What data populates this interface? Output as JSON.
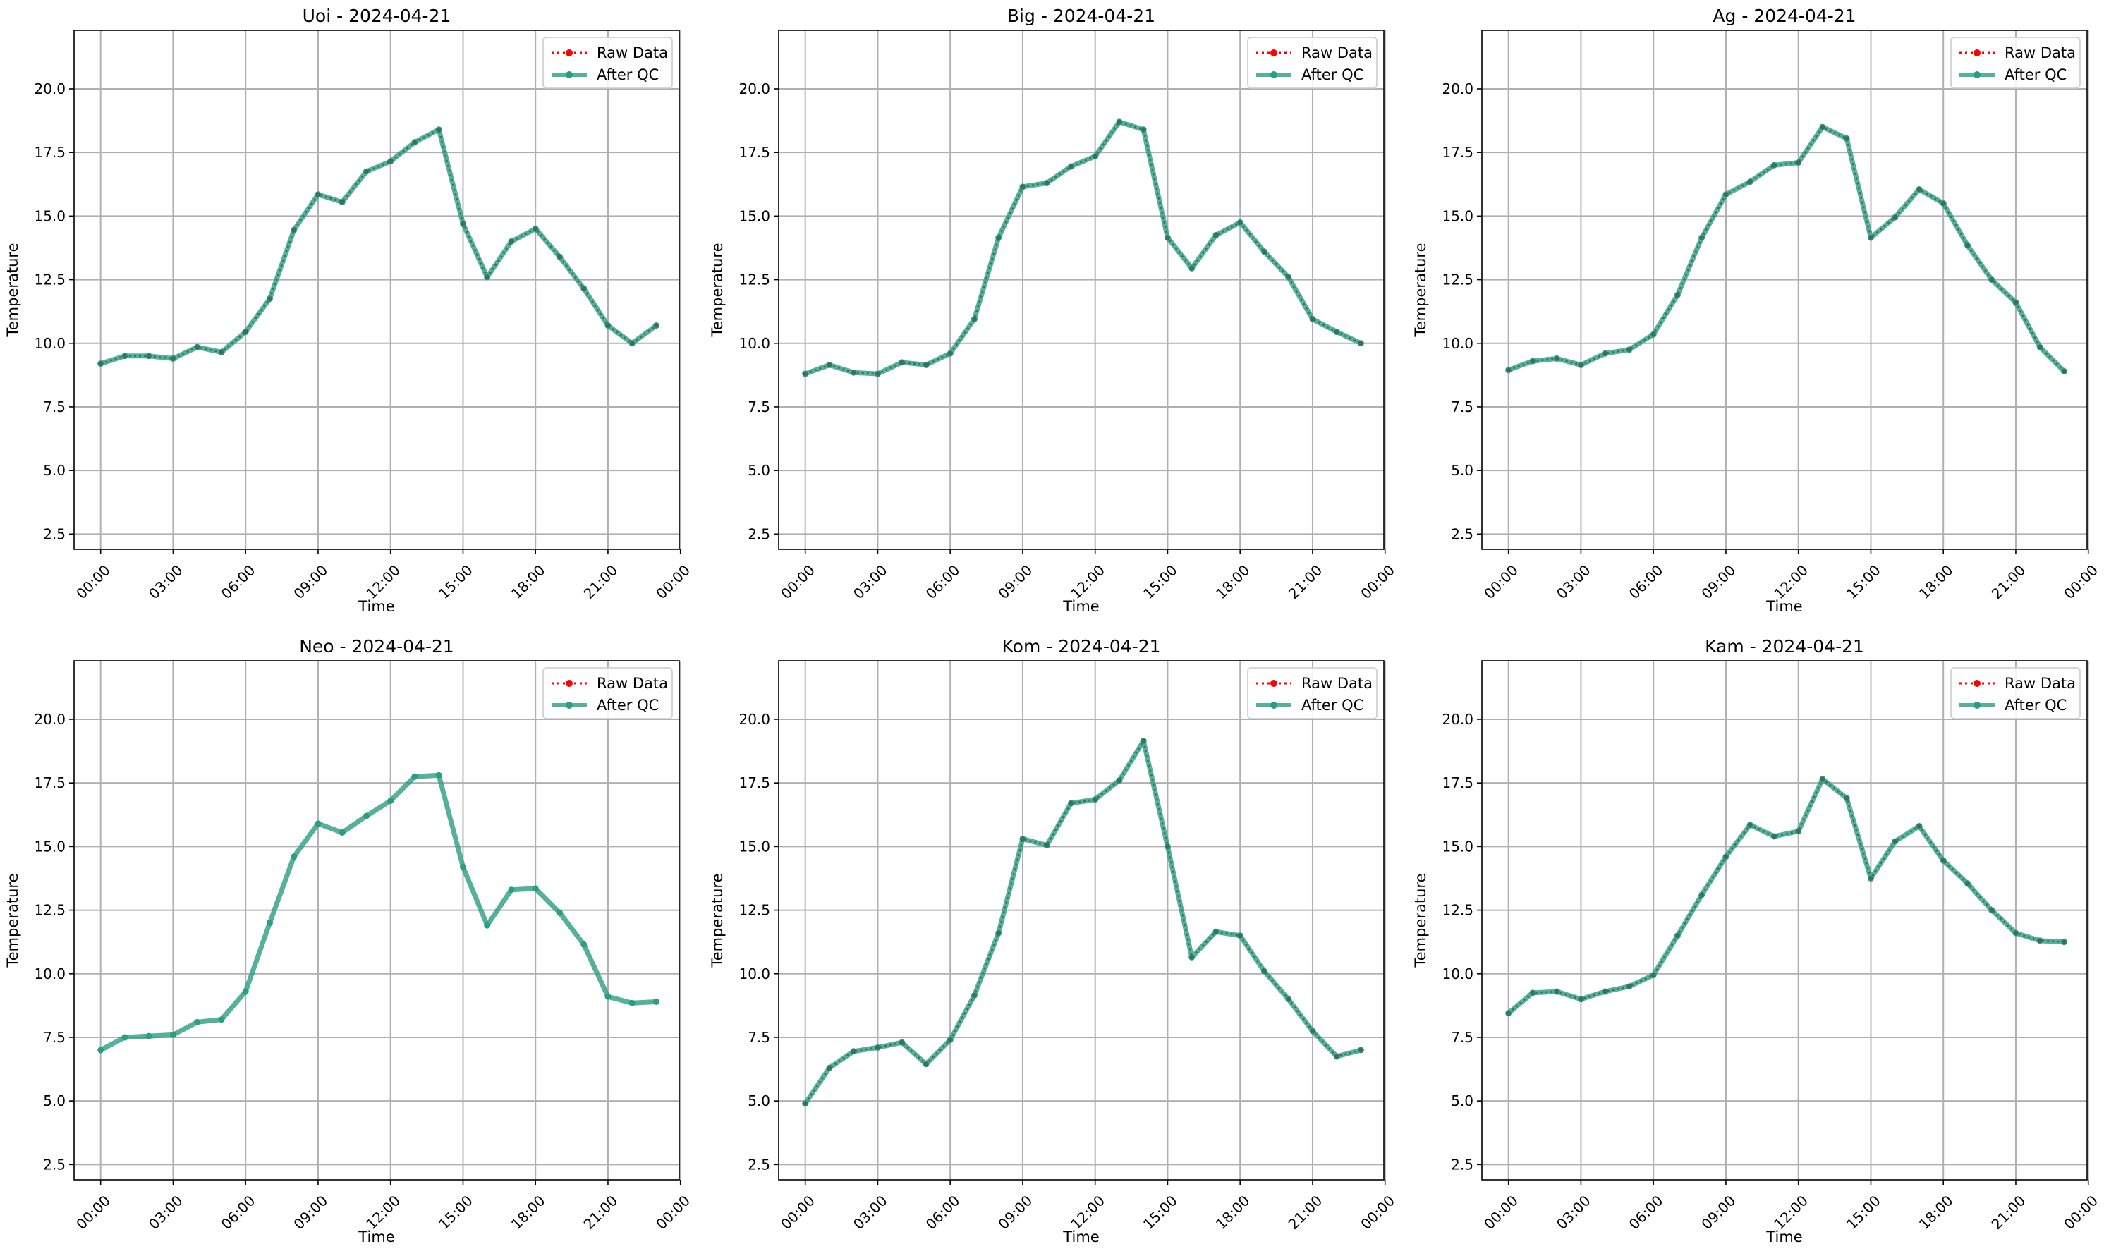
{
  "chart_data": [
    {
      "type": "line",
      "title": "Uoi - 2024-04-21",
      "xlabel": "Time",
      "ylabel": "Temperature",
      "ylim": [
        1.9,
        22.3
      ],
      "yticks": [
        "2.5",
        "5.0",
        "7.5",
        "10.0",
        "12.5",
        "15.0",
        "17.5",
        "20.0"
      ],
      "xticks": [
        "00:00",
        "03:00",
        "06:00",
        "09:00",
        "12:00",
        "15:00",
        "18:00",
        "21:00",
        "00:00"
      ],
      "x_hours": [
        0,
        1,
        2,
        3,
        4,
        5,
        6,
        7,
        8,
        9,
        10,
        11,
        12,
        13,
        14,
        15,
        16,
        17,
        18,
        19,
        20,
        21,
        22,
        23
      ],
      "grid": true,
      "legend_position": "top-right",
      "series": [
        {
          "name": "Raw Data",
          "color": "#ff0000",
          "style": "dotted",
          "values": [
            9.2,
            9.5,
            9.5,
            9.4,
            9.85,
            9.65,
            10.45,
            11.75,
            14.45,
            15.85,
            15.55,
            16.75,
            17.15,
            17.9,
            18.4,
            14.7,
            12.6,
            14.0,
            14.5,
            13.4,
            12.15,
            10.7,
            10.0,
            10.7
          ]
        },
        {
          "name": "After QC",
          "color": "#2a9d82",
          "style": "solid",
          "values": [
            9.2,
            9.5,
            9.5,
            9.4,
            9.85,
            9.65,
            10.45,
            11.75,
            14.45,
            15.85,
            15.55,
            16.75,
            17.15,
            17.9,
            18.4,
            14.7,
            12.6,
            14.0,
            14.5,
            13.4,
            12.15,
            10.7,
            10.0,
            10.7
          ]
        }
      ]
    },
    {
      "type": "line",
      "title": "Big - 2024-04-21",
      "xlabel": "Time",
      "ylabel": "Temperature",
      "ylim": [
        1.9,
        22.3
      ],
      "yticks": [
        "2.5",
        "5.0",
        "7.5",
        "10.0",
        "12.5",
        "15.0",
        "17.5",
        "20.0"
      ],
      "xticks": [
        "00:00",
        "03:00",
        "06:00",
        "09:00",
        "12:00",
        "15:00",
        "18:00",
        "21:00",
        "00:00"
      ],
      "x_hours": [
        0,
        1,
        2,
        3,
        4,
        5,
        6,
        7,
        8,
        9,
        10,
        11,
        12,
        13,
        14,
        15,
        16,
        17,
        18,
        19,
        20,
        21,
        22,
        23
      ],
      "grid": true,
      "legend_position": "top-right",
      "series": [
        {
          "name": "Raw Data",
          "color": "#ff0000",
          "style": "dotted",
          "values": [
            8.8,
            9.15,
            8.85,
            8.8,
            9.25,
            9.15,
            9.6,
            10.95,
            14.15,
            16.15,
            16.3,
            16.95,
            17.35,
            18.7,
            18.4,
            14.15,
            12.95,
            14.25,
            14.75,
            13.6,
            12.6,
            10.95,
            10.45,
            10.0
          ]
        },
        {
          "name": "After QC",
          "color": "#2a9d82",
          "style": "solid",
          "values": [
            8.8,
            9.15,
            8.85,
            8.8,
            9.25,
            9.15,
            9.6,
            10.95,
            14.15,
            16.15,
            16.3,
            16.95,
            17.35,
            18.7,
            18.4,
            14.15,
            12.95,
            14.25,
            14.75,
            13.6,
            12.6,
            10.95,
            10.45,
            10.0
          ]
        }
      ]
    },
    {
      "type": "line",
      "title": "Ag - 2024-04-21",
      "xlabel": "Time",
      "ylabel": "Temperature",
      "ylim": [
        1.9,
        22.3
      ],
      "yticks": [
        "2.5",
        "5.0",
        "7.5",
        "10.0",
        "12.5",
        "15.0",
        "17.5",
        "20.0"
      ],
      "xticks": [
        "00:00",
        "03:00",
        "06:00",
        "09:00",
        "12:00",
        "15:00",
        "18:00",
        "21:00",
        "00:00"
      ],
      "x_hours": [
        0,
        1,
        2,
        3,
        4,
        5,
        6,
        7,
        8,
        9,
        10,
        11,
        12,
        13,
        14,
        15,
        16,
        17,
        18,
        19,
        20,
        21,
        22,
        23
      ],
      "grid": true,
      "legend_position": "top-right",
      "series": [
        {
          "name": "Raw Data",
          "color": "#ff0000",
          "style": "dotted",
          "values": [
            8.95,
            9.3,
            9.4,
            9.15,
            9.6,
            9.75,
            10.35,
            11.9,
            14.15,
            15.85,
            16.35,
            17.0,
            17.1,
            18.5,
            18.05,
            14.15,
            14.95,
            16.05,
            15.5,
            13.85,
            12.5,
            11.6,
            9.85,
            8.9
          ]
        },
        {
          "name": "After QC",
          "color": "#2a9d82",
          "style": "solid",
          "values": [
            8.95,
            9.3,
            9.4,
            9.15,
            9.6,
            9.75,
            10.35,
            11.9,
            14.15,
            15.85,
            16.35,
            17.0,
            17.1,
            18.5,
            18.05,
            14.15,
            14.95,
            16.05,
            15.5,
            13.85,
            12.5,
            11.6,
            9.85,
            8.9
          ]
        }
      ]
    },
    {
      "type": "line",
      "title": "Neo - 2024-04-21",
      "xlabel": "Time",
      "ylabel": "Temperature",
      "ylim": [
        1.9,
        22.3
      ],
      "yticks": [
        "2.5",
        "5.0",
        "7.5",
        "10.0",
        "12.5",
        "15.0",
        "17.5",
        "20.0"
      ],
      "xticks": [
        "00:00",
        "03:00",
        "06:00",
        "09:00",
        "12:00",
        "15:00",
        "18:00",
        "21:00",
        "00:00"
      ],
      "x_hours": [
        0,
        1,
        2,
        3,
        4,
        5,
        6,
        7,
        8,
        9,
        10,
        11,
        12,
        13,
        14,
        15,
        16,
        17,
        18,
        19,
        20,
        21,
        22,
        23
      ],
      "grid": true,
      "legend_position": "top-right",
      "series": [
        {
          "name": "Raw Data",
          "color": "#ff0000",
          "style": "dotted",
          "values": [
            7.0,
            7.5,
            7.55,
            7.6,
            8.1,
            8.2,
            9.3,
            12.0,
            14.6,
            15.9,
            15.55,
            16.2,
            16.8,
            17.75,
            17.8,
            14.2,
            11.9,
            13.3,
            13.35,
            12.4,
            11.15,
            9.1,
            8.85,
            8.9
          ]
        },
        {
          "name": "After QC",
          "color": "#2a9d82",
          "style": "solid",
          "values": [
            7.0,
            7.5,
            7.55,
            7.6,
            8.1,
            8.2,
            9.3,
            12.0,
            14.6,
            15.9,
            15.55,
            16.2,
            16.8,
            17.75,
            17.8,
            14.2,
            11.9,
            13.3,
            13.35,
            12.4,
            11.15,
            9.1,
            8.85,
            8.9
          ]
        }
      ]
    },
    {
      "type": "line",
      "title": "Kom - 2024-04-21",
      "xlabel": "Time",
      "ylabel": "Temperature",
      "ylim": [
        1.9,
        22.3
      ],
      "yticks": [
        "2.5",
        "5.0",
        "7.5",
        "10.0",
        "12.5",
        "15.0",
        "17.5",
        "20.0"
      ],
      "xticks": [
        "00:00",
        "03:00",
        "06:00",
        "09:00",
        "12:00",
        "15:00",
        "18:00",
        "21:00",
        "00:00"
      ],
      "x_hours": [
        0,
        1,
        2,
        3,
        4,
        5,
        6,
        7,
        8,
        9,
        10,
        11,
        12,
        13,
        14,
        15,
        16,
        17,
        18,
        19,
        20,
        21,
        22,
        23
      ],
      "grid": true,
      "legend_position": "top-right",
      "series": [
        {
          "name": "Raw Data",
          "color": "#ff0000",
          "style": "dotted",
          "values": [
            4.9,
            6.3,
            6.95,
            7.1,
            7.3,
            6.45,
            7.4,
            9.15,
            11.6,
            15.3,
            15.05,
            16.7,
            16.85,
            17.6,
            19.15,
            15.0,
            10.65,
            11.65,
            11.5,
            10.1,
            9.0,
            7.75,
            6.75,
            7.0
          ]
        },
        {
          "name": "After QC",
          "color": "#2a9d82",
          "style": "solid",
          "values": [
            4.9,
            6.3,
            6.95,
            7.1,
            7.3,
            6.45,
            7.4,
            9.15,
            11.6,
            15.3,
            15.05,
            16.7,
            16.85,
            17.6,
            19.15,
            15.0,
            10.65,
            11.65,
            11.5,
            10.1,
            9.0,
            7.75,
            6.75,
            7.0
          ]
        }
      ]
    },
    {
      "type": "line",
      "title": "Kam - 2024-04-21",
      "xlabel": "Time",
      "ylabel": "Temperature",
      "ylim": [
        1.9,
        22.3
      ],
      "yticks": [
        "2.5",
        "5.0",
        "7.5",
        "10.0",
        "12.5",
        "15.0",
        "17.5",
        "20.0"
      ],
      "xticks": [
        "00:00",
        "03:00",
        "06:00",
        "09:00",
        "12:00",
        "15:00",
        "18:00",
        "21:00",
        "00:00"
      ],
      "x_hours": [
        0,
        1,
        2,
        3,
        4,
        5,
        6,
        7,
        8,
        9,
        10,
        11,
        12,
        13,
        14,
        15,
        16,
        17,
        18,
        19,
        20,
        21,
        22,
        23
      ],
      "grid": true,
      "legend_position": "top-right",
      "series": [
        {
          "name": "Raw Data",
          "color": "#ff0000",
          "style": "dotted",
          "values": [
            8.45,
            9.25,
            9.3,
            9.0,
            9.3,
            9.5,
            9.95,
            11.5,
            13.1,
            14.6,
            15.85,
            15.4,
            15.6,
            17.65,
            16.9,
            13.75,
            15.2,
            15.8,
            14.45,
            13.55,
            12.5,
            11.6,
            11.3,
            11.25
          ]
        },
        {
          "name": "After QC",
          "color": "#2a9d82",
          "style": "solid",
          "values": [
            8.45,
            9.25,
            9.3,
            9.0,
            9.3,
            9.5,
            9.95,
            11.5,
            13.1,
            14.6,
            15.85,
            15.4,
            15.6,
            17.65,
            16.9,
            13.75,
            15.2,
            15.8,
            14.45,
            13.55,
            12.5,
            11.6,
            11.3,
            11.25
          ]
        }
      ]
    }
  ]
}
